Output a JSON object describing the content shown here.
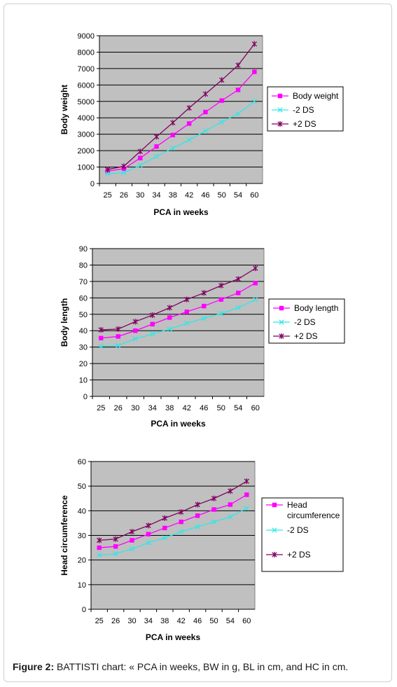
{
  "caption": {
    "label": "Figure 2:",
    "text": " BATTISTI chart: « PCA in weeks, BW in g, BL in cm, and HC in cm."
  },
  "chart_data": [
    {
      "type": "line",
      "categories": [
        "25",
        "26",
        "30",
        "34",
        "38",
        "42",
        "46",
        "50",
        "54",
        "60"
      ],
      "xlabel": "PCA in weeks",
      "ylabel": "Body weight",
      "ylim": [
        0,
        9000
      ],
      "yticks": [
        0,
        1000,
        2000,
        3000,
        4000,
        5000,
        6000,
        7000,
        8000,
        9000
      ],
      "grid": true,
      "legend": "right",
      "plot_bg": "#c0c0c0",
      "series": [
        {
          "name": "Body weight",
          "color": "#ff00ff",
          "marker": "square",
          "values": [
            750,
            900,
            1550,
            2250,
            2950,
            3650,
            4350,
            5050,
            5700,
            6800
          ]
        },
        {
          "name": "-2 DS",
          "color": "#33e6e6",
          "marker": "x",
          "values": [
            600,
            650,
            1100,
            1650,
            2150,
            2650,
            3200,
            3750,
            4250,
            5000
          ]
        },
        {
          "name": "+2 DS",
          "color": "#800060",
          "marker": "star",
          "values": [
            850,
            1050,
            1950,
            2850,
            3700,
            4600,
            5450,
            6300,
            7200,
            8500
          ]
        }
      ]
    },
    {
      "type": "line",
      "categories": [
        "25",
        "26",
        "30",
        "34",
        "38",
        "42",
        "46",
        "50",
        "54",
        "60"
      ],
      "xlabel": "PCA in weeks",
      "ylabel": "Body length",
      "ylim": [
        0,
        90
      ],
      "yticks": [
        0,
        10,
        20,
        30,
        40,
        50,
        60,
        70,
        80,
        90
      ],
      "grid": true,
      "legend": "right",
      "plot_bg": "#c0c0c0",
      "series": [
        {
          "name": "Body length",
          "color": "#ff00ff",
          "marker": "square",
          "values": [
            35.5,
            36.5,
            40,
            44,
            48,
            51.5,
            55,
            59,
            63,
            69
          ]
        },
        {
          "name": "-2 DS",
          "color": "#33e6e6",
          "marker": "x",
          "values": [
            30.5,
            31,
            35,
            38,
            41,
            44.5,
            47.5,
            50.5,
            54,
            59
          ]
        },
        {
          "name": "+2 DS",
          "color": "#800060",
          "marker": "star",
          "values": [
            40.5,
            41,
            45.5,
            49.5,
            54,
            59,
            63,
            67.5,
            71.5,
            78
          ]
        }
      ]
    },
    {
      "type": "line",
      "categories": [
        "25",
        "26",
        "30",
        "34",
        "38",
        "42",
        "46",
        "50",
        "54",
        "60"
      ],
      "xlabel": "PCA in weeks",
      "ylabel": "Head circumference",
      "ylim": [
        0,
        60
      ],
      "yticks": [
        0,
        10,
        20,
        30,
        40,
        50,
        60
      ],
      "grid": true,
      "legend": "right",
      "plot_bg": "#c0c0c0",
      "series": [
        {
          "name": "Head circumference",
          "color": "#ff00ff",
          "marker": "square",
          "values": [
            25,
            25.5,
            28,
            30.5,
            33,
            35.5,
            38,
            40.5,
            42.5,
            46.5
          ]
        },
        {
          "name": "-2 DS",
          "color": "#33e6e6",
          "marker": "x",
          "values": [
            22,
            22.5,
            24.5,
            27,
            29,
            31.5,
            33.5,
            35.5,
            37.5,
            41
          ]
        },
        {
          "name": "+2 DS",
          "color": "#800060",
          "marker": "star",
          "values": [
            28,
            28.5,
            31.5,
            34,
            37,
            39.5,
            42.5,
            45,
            48,
            52
          ]
        }
      ]
    }
  ]
}
